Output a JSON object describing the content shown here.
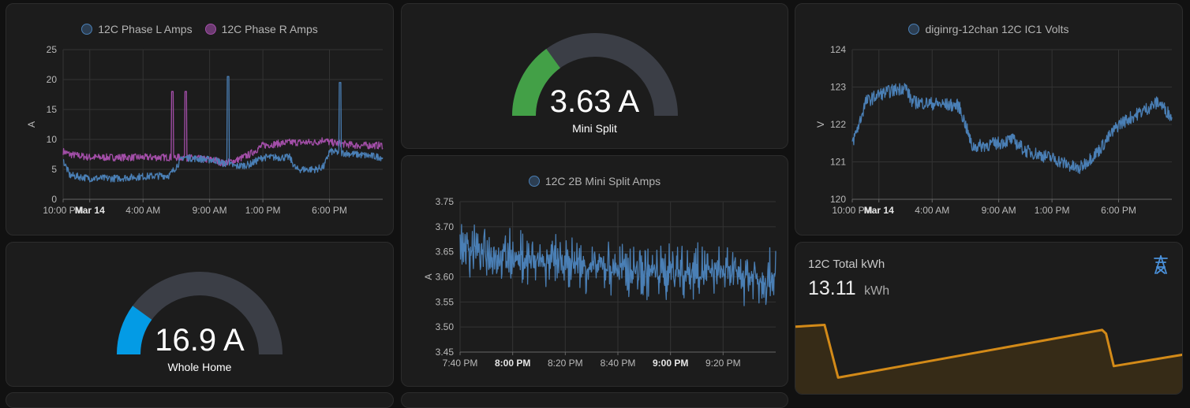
{
  "colors": {
    "card_background": "#1c1c1c",
    "page_background": "#111111",
    "series_blue": "#4a7fb5",
    "series_purple": "#a34ea8",
    "gauge_track": "#3b3e46",
    "gauge_green": "#43a047",
    "gauge_blue": "#039be5",
    "energy_line": "#d38a18"
  },
  "phase_card": {
    "legend": [
      {
        "label": "12C Phase L Amps",
        "color": "#4a7fb5"
      },
      {
        "label": "12C Phase R Amps",
        "color": "#a34ea8"
      }
    ]
  },
  "mini_split_gauge": {
    "value": "3.63 A",
    "name": "Mini Split",
    "fraction": 0.3
  },
  "whole_home_gauge": {
    "value": "16.9 A",
    "name": "Whole Home",
    "fraction": 0.2
  },
  "mini_split_card": {
    "legend": [
      {
        "label": "12C 2B Mini Split Amps",
        "color": "#4a7fb5"
      }
    ]
  },
  "volts_card": {
    "legend": [
      {
        "label": "diginrg-12chan 12C IC1 Volts",
        "color": "#4a7fb5"
      }
    ]
  },
  "energy_card": {
    "title": "12C Total kWh",
    "value": "13.11",
    "unit": "kWh",
    "icon": "transmission-tower-icon"
  },
  "chart_data": [
    {
      "type": "line",
      "ylabel": "A",
      "ylim": [
        0,
        25
      ],
      "yticks": [
        "0",
        "5",
        "10",
        "15",
        "20",
        "25"
      ],
      "xticks": [
        "10:00 PM",
        "Mar 14",
        "4:00 AM",
        "9:00 AM",
        "1:00 PM",
        "6:00 PM"
      ],
      "x_hours": [
        0,
        2,
        6,
        11,
        15,
        20,
        24
      ],
      "series": [
        {
          "name": "12C Phase L Amps",
          "x": [
            0,
            0.5,
            2,
            4,
            6,
            8,
            9,
            11.5,
            12,
            13,
            14,
            15,
            17,
            17.5,
            19,
            19.6,
            20,
            22,
            24
          ],
          "values": [
            6.5,
            4,
            3.5,
            3.5,
            3.8,
            4,
            7,
            6.5,
            6,
            5.5,
            5.8,
            7,
            7,
            5,
            5,
            5.5,
            8,
            7.5,
            7
          ]
        },
        {
          "name": "12C Phase R Amps",
          "x": [
            0,
            0.5,
            2,
            4,
            6,
            8,
            9,
            11.5,
            12,
            13,
            14,
            15,
            17,
            17.5,
            19,
            19.6,
            20,
            22,
            24
          ],
          "values": [
            8,
            7.5,
            7,
            7,
            7,
            7,
            7,
            6.5,
            6,
            6.5,
            7.5,
            9,
            9.5,
            9.5,
            9.5,
            10,
            9.5,
            9,
            9
          ]
        }
      ],
      "spikes": [
        {
          "series": 1,
          "x": 8.2,
          "value": 18
        },
        {
          "series": 1,
          "x": 9.2,
          "value": 18
        },
        {
          "series": 0,
          "x": 12.4,
          "value": 20.5
        },
        {
          "series": 0,
          "x": 20.8,
          "value": 19.5
        }
      ]
    },
    {
      "type": "line",
      "ylabel": "A",
      "ylim": [
        3.45,
        3.75
      ],
      "yticks": [
        "3.45",
        "3.50",
        "3.55",
        "3.60",
        "3.65",
        "3.70",
        "3.75"
      ],
      "xticks": [
        "7:40 PM",
        "8:00 PM",
        "8:20 PM",
        "8:40 PM",
        "9:00 PM",
        "9:20 PM"
      ],
      "bold_xticks": [
        "8:00 PM",
        "9:00 PM"
      ],
      "x_minutes": [
        0,
        20,
        40,
        60,
        80,
        100,
        120
      ],
      "series": [
        {
          "name": "12C 2B Mini Split Amps",
          "x": [
            0,
            10,
            20,
            30,
            40,
            50,
            60,
            70,
            80,
            90,
            100,
            110,
            118
          ],
          "values": [
            3.66,
            3.65,
            3.64,
            3.63,
            3.63,
            3.62,
            3.62,
            3.61,
            3.61,
            3.61,
            3.61,
            3.6,
            3.6
          ],
          "band": 0.06
        }
      ]
    },
    {
      "type": "line",
      "ylabel": "V",
      "ylim": [
        120,
        124
      ],
      "yticks": [
        "120",
        "121",
        "122",
        "123",
        "124"
      ],
      "xticks": [
        "10:00 PM",
        "Mar 14",
        "4:00 AM",
        "9:00 AM",
        "1:00 PM",
        "6:00 PM"
      ],
      "x_hours": [
        0,
        2,
        6,
        11,
        15,
        20,
        24
      ],
      "series": [
        {
          "name": "diginrg-12chan 12C IC1 Volts",
          "x": [
            0,
            0.5,
            1,
            2,
            4,
            4.5,
            8,
            8.5,
            9,
            11,
            12,
            13,
            15,
            17,
            18.5,
            20,
            22,
            23,
            24
          ],
          "values": [
            121.5,
            122,
            122.6,
            122.8,
            123,
            122.6,
            122.5,
            122,
            121.4,
            121.5,
            121.6,
            121.3,
            121.1,
            120.8,
            121.3,
            122,
            122.4,
            122.6,
            122.2
          ]
        }
      ]
    },
    {
      "type": "area",
      "ylim": [
        0,
        16
      ],
      "series": [
        {
          "name": "12C Total kWh",
          "x": [
            0,
            0.075,
            0.11,
            0.79,
            0.8,
            0.82,
            1
          ],
          "values": [
            14.5,
            14.9,
            3.5,
            13.8,
            13,
            6,
            8.5
          ]
        }
      ]
    }
  ]
}
